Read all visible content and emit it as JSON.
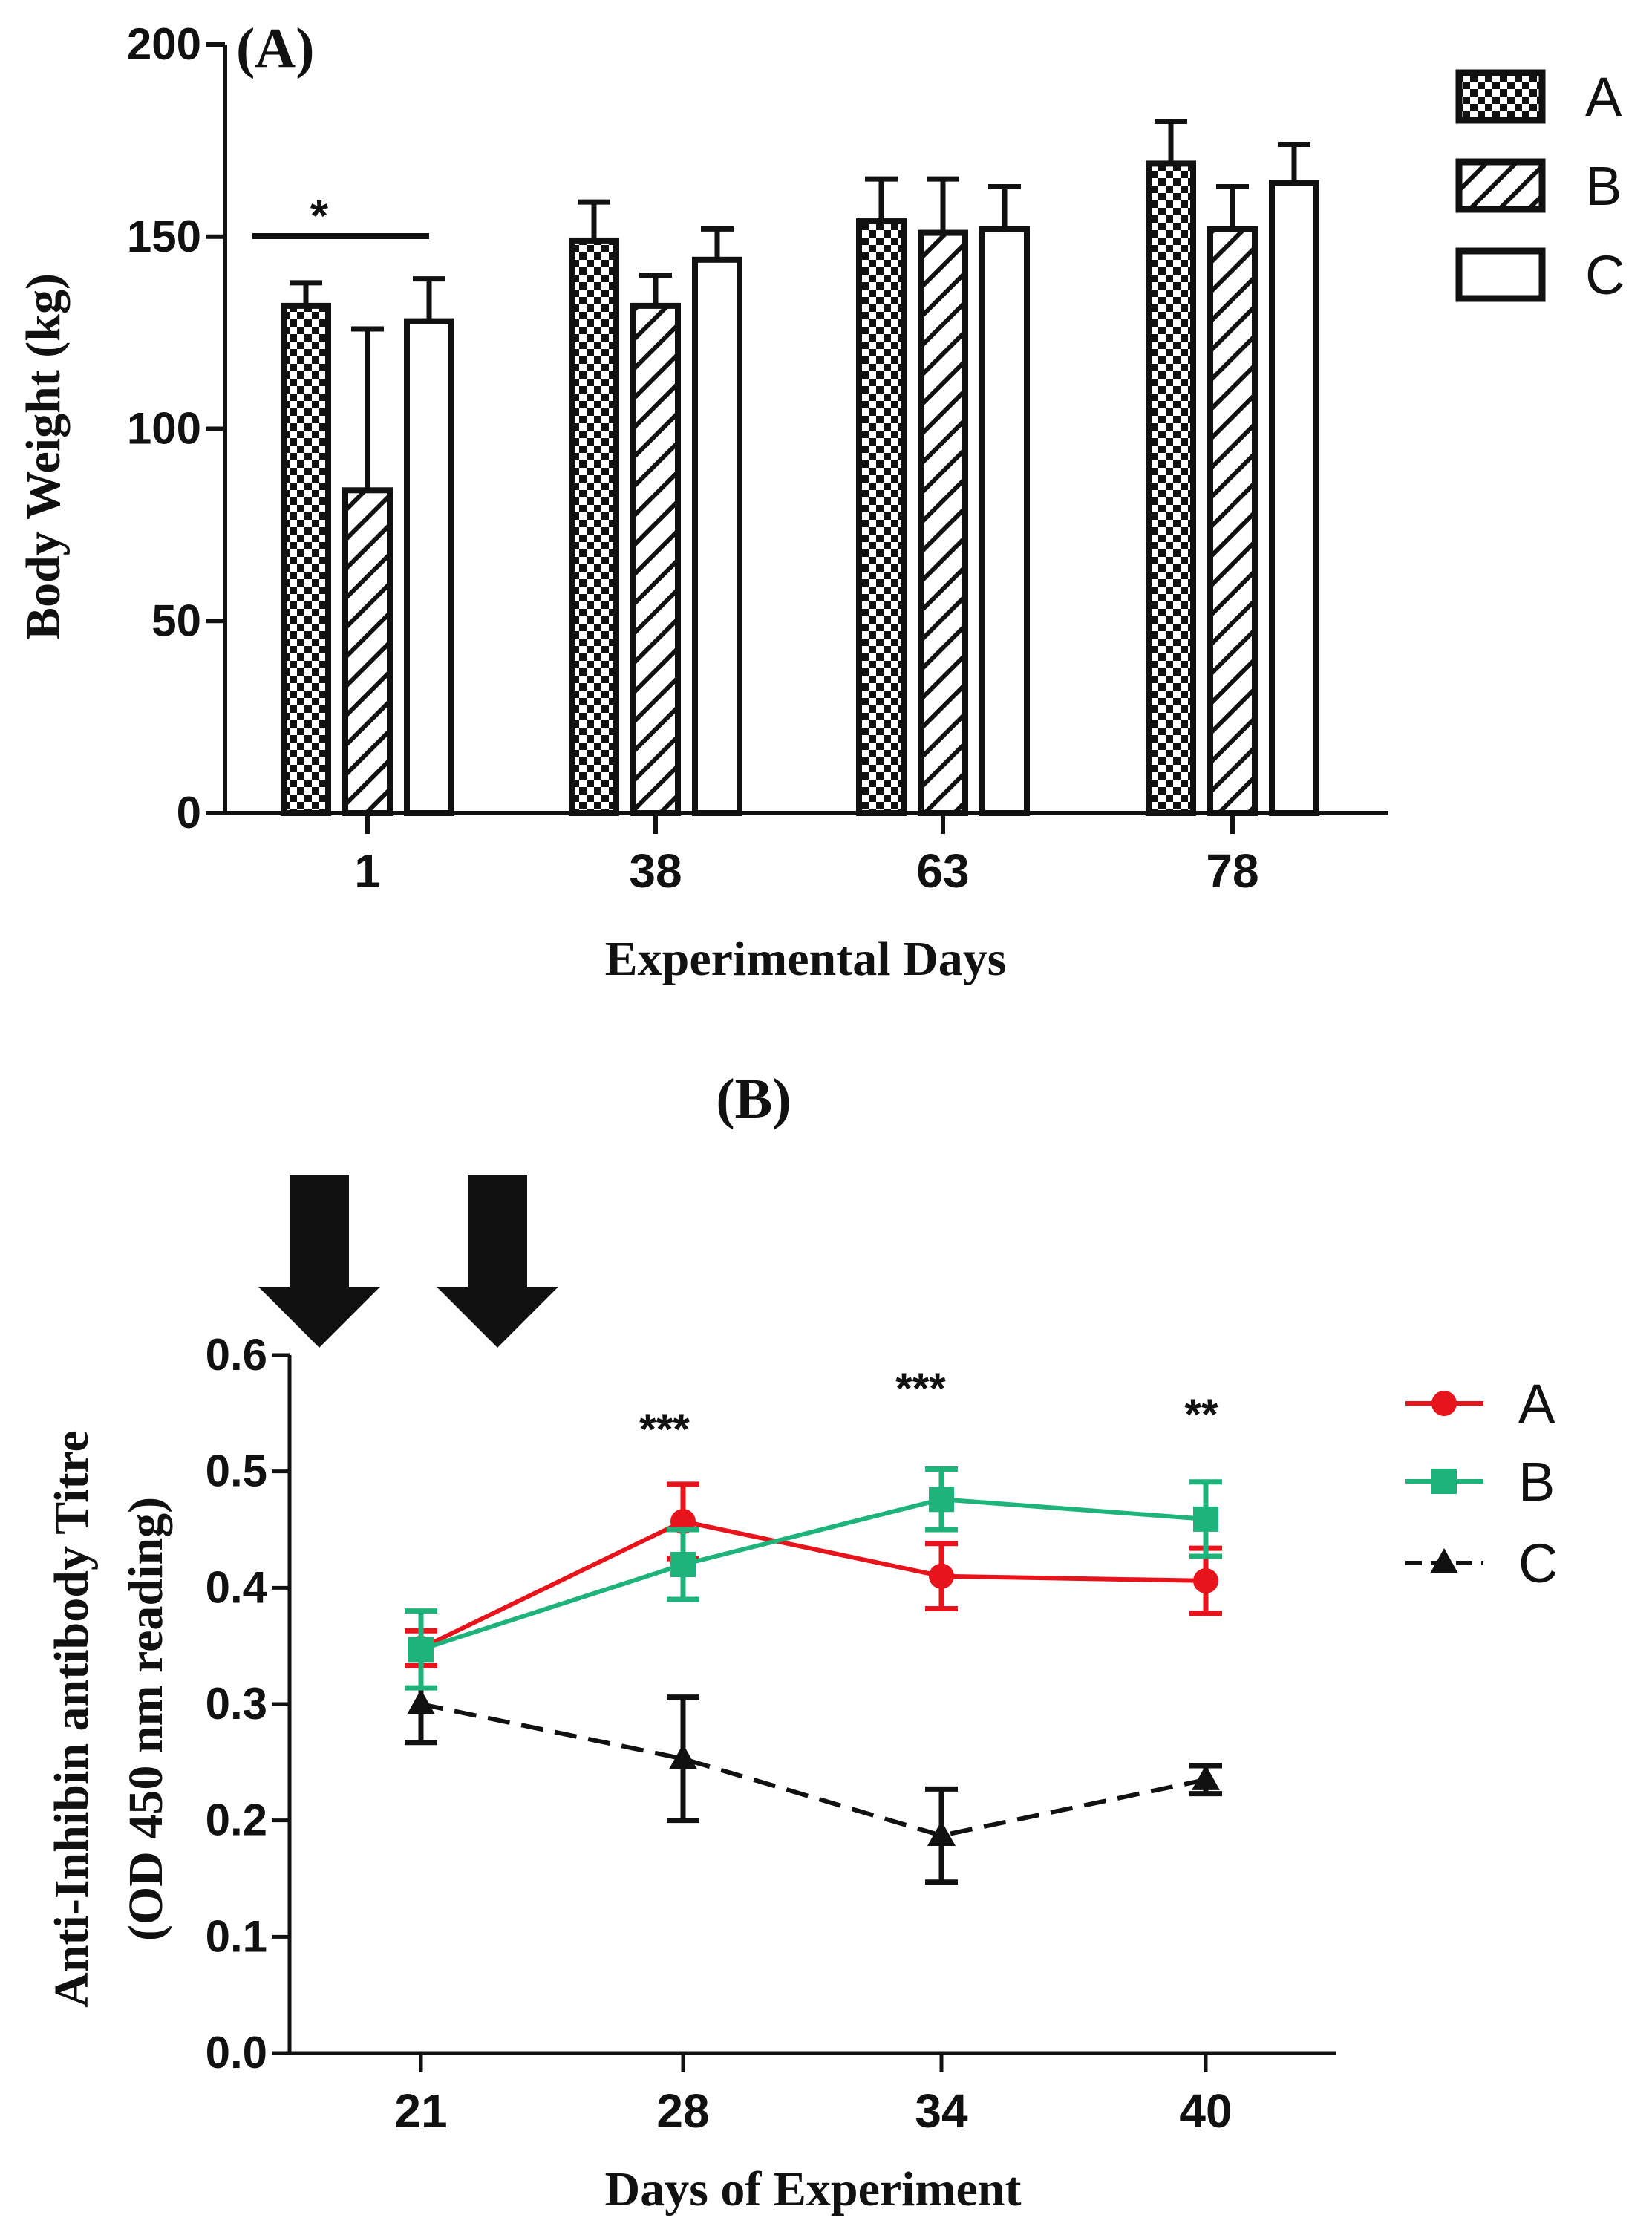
{
  "chart_data": [
    {
      "type": "bar",
      "panel_label": "(A)",
      "title": "",
      "xlabel": "Experimental Days",
      "ylabel": "Body Weight (kg)",
      "ylim": [
        0,
        200
      ],
      "yticks": [
        "0",
        "50",
        "100",
        "150",
        "200"
      ],
      "categories": [
        "1",
        "38",
        "63",
        "78"
      ],
      "series": [
        {
          "name": "A",
          "pattern": "checker",
          "values": [
            132,
            149,
            154,
            169
          ],
          "errors": [
            6,
            10,
            11,
            11
          ]
        },
        {
          "name": "B",
          "pattern": "hatch",
          "values": [
            84,
            132,
            151,
            152
          ],
          "errors": [
            42,
            8,
            14,
            11
          ]
        },
        {
          "name": "C",
          "pattern": "open",
          "values": [
            128,
            144,
            152,
            164
          ],
          "errors": [
            11,
            8,
            11,
            10
          ]
        }
      ],
      "annotations": [
        {
          "text": "*",
          "category": "1",
          "type": "bracket"
        }
      ],
      "legend_position": "top-right"
    },
    {
      "type": "line",
      "panel_label": "(B)",
      "title": "",
      "xlabel": "Days of Experiment",
      "ylabel_line1": "Anti-Inhibin antibody Titre",
      "ylabel_line2": "(OD 450 nm reading)",
      "ylim": [
        0.0,
        0.6
      ],
      "yticks": [
        "0.0",
        "0.1",
        "0.2",
        "0.3",
        "0.4",
        "0.5",
        "0.6"
      ],
      "x": [
        "21",
        "28",
        "34",
        "40"
      ],
      "series": [
        {
          "name": "A",
          "color": "#e8141c",
          "marker": "circle",
          "line": "solid",
          "values": [
            0.348,
            0.457,
            0.41,
            0.406
          ],
          "errors": [
            0.015,
            0.032,
            0.028,
            0.028
          ]
        },
        {
          "name": "B",
          "color": "#1db37a",
          "marker": "square",
          "line": "solid",
          "values": [
            0.347,
            0.42,
            0.476,
            0.459
          ],
          "errors": [
            0.033,
            0.03,
            0.026,
            0.032
          ]
        },
        {
          "name": "C",
          "color": "#111111",
          "marker": "triangle",
          "line": "dashed",
          "values": [
            0.3,
            0.253,
            0.187,
            0.235
          ],
          "errors": [
            0.033,
            0.053,
            0.04,
            0.012
          ]
        }
      ],
      "annotations": [
        {
          "text": "***",
          "x": "28"
        },
        {
          "text": "***",
          "x": "34"
        },
        {
          "text": "**",
          "x": "40"
        }
      ],
      "arrows": 2,
      "legend_position": "top-right"
    }
  ]
}
